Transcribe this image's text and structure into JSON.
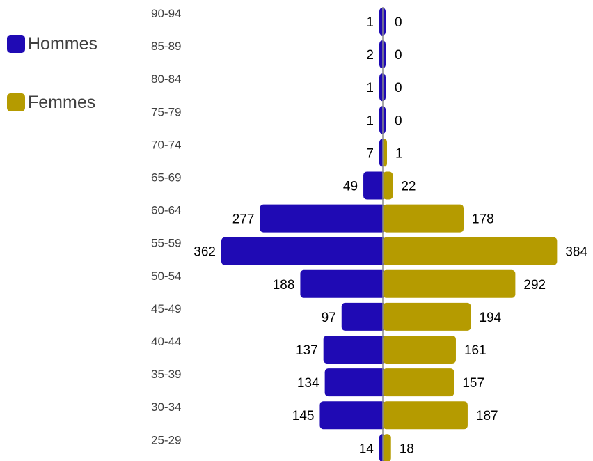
{
  "chart_data": {
    "type": "bar",
    "orientation": "horizontal",
    "layout": "population-pyramid",
    "categories": [
      "90-94",
      "85-89",
      "80-84",
      "75-79",
      "70-74",
      "65-69",
      "60-64",
      "55-59",
      "50-54",
      "45-49",
      "40-44",
      "35-39",
      "30-34",
      "25-29"
    ],
    "series": [
      {
        "name": "Hommes",
        "color": "#1f0ab4",
        "side": "left",
        "values": [
          1,
          2,
          1,
          1,
          7,
          49,
          277,
          362,
          188,
          97,
          137,
          134,
          145,
          14
        ]
      },
      {
        "name": "Femmes",
        "color": "#b59b00",
        "side": "right",
        "values": [
          0,
          0,
          0,
          0,
          1,
          22,
          178,
          384,
          292,
          194,
          161,
          157,
          187,
          18
        ]
      }
    ],
    "legend_position": "top-left",
    "grid": false
  }
}
